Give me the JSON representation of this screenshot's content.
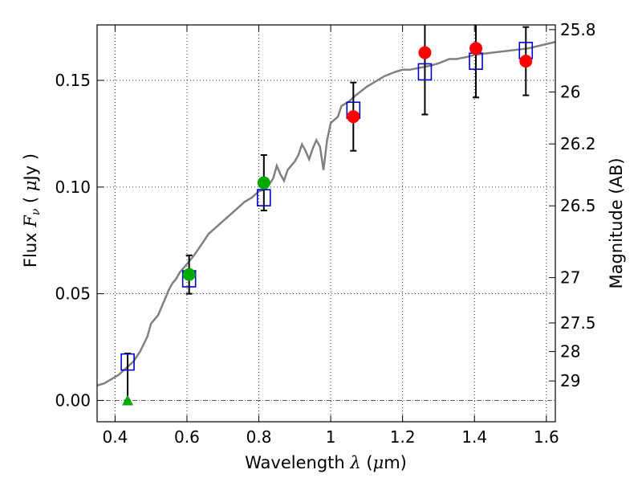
{
  "chart_data": {
    "type": "scatter",
    "title": "",
    "xlabel": "Wavelength  λ (μm)",
    "ylabel": "Flux  F_ν ( μJy )",
    "ylabel_parts": {
      "prefix": "Flux  ",
      "symbol_main": "F",
      "symbol_sub": "ν",
      "open": " ( ",
      "unit_symbol": "μ",
      "unit_rest": "Jy",
      "close": " )"
    },
    "xlabel_parts": {
      "prefix": "Wavelength  ",
      "symbol": "λ",
      "open": " (",
      "unit_symbol": "μ",
      "unit_rest": "m)"
    },
    "y2label": "Magnitude (AB)",
    "xlim": [
      0.35,
      1.625
    ],
    "ylim": [
      -0.01,
      0.176
    ],
    "grid": true,
    "x_ticks": [
      {
        "value": 0.4,
        "label": "0.4"
      },
      {
        "value": 0.6,
        "label": "0.6"
      },
      {
        "value": 0.8,
        "label": "0.8"
      },
      {
        "value": 1.0,
        "label": "1"
      },
      {
        "value": 1.2,
        "label": "1.2"
      },
      {
        "value": 1.4,
        "label": "1.4"
      },
      {
        "value": 1.6,
        "label": "1.6"
      }
    ],
    "y_ticks": [
      {
        "value": 0.0,
        "label": "0.00"
      },
      {
        "value": 0.05,
        "label": "0.05"
      },
      {
        "value": 0.1,
        "label": "0.10"
      },
      {
        "value": 0.15,
        "label": "0.15"
      }
    ],
    "y2_ticks": [
      {
        "value": 25.8,
        "label": "25.8"
      },
      {
        "value": 26.0,
        "label": "26"
      },
      {
        "value": 26.2,
        "label": "26.2"
      },
      {
        "value": 26.5,
        "label": "26.5"
      },
      {
        "value": 27.0,
        "label": "27"
      },
      {
        "value": 27.5,
        "label": "27.5"
      },
      {
        "value": 28.0,
        "label": "28"
      },
      {
        "value": 29.0,
        "label": "29"
      }
    ],
    "series": [
      {
        "kind": "model_spectrum",
        "color": "#808080",
        "x": [
          0.35,
          0.37,
          0.39,
          0.41,
          0.43,
          0.45,
          0.47,
          0.49,
          0.5,
          0.52,
          0.53,
          0.54,
          0.55,
          0.56,
          0.57,
          0.58,
          0.59,
          0.6,
          0.62,
          0.64,
          0.66,
          0.68,
          0.7,
          0.72,
          0.74,
          0.76,
          0.78,
          0.8,
          0.82,
          0.84,
          0.85,
          0.86,
          0.87,
          0.88,
          0.89,
          0.9,
          0.91,
          0.92,
          0.93,
          0.94,
          0.95,
          0.96,
          0.97,
          0.98,
          0.99,
          1.0,
          1.02,
          1.03,
          1.05,
          1.07,
          1.1,
          1.13,
          1.15,
          1.18,
          1.2,
          1.22,
          1.25,
          1.28,
          1.3,
          1.33,
          1.35,
          1.38,
          1.4,
          1.45,
          1.5,
          1.55,
          1.6,
          1.625
        ],
        "y": [
          0.007,
          0.008,
          0.01,
          0.012,
          0.015,
          0.018,
          0.023,
          0.03,
          0.036,
          0.04,
          0.044,
          0.048,
          0.052,
          0.055,
          0.057,
          0.06,
          0.062,
          0.064,
          0.068,
          0.073,
          0.078,
          0.081,
          0.084,
          0.087,
          0.09,
          0.093,
          0.095,
          0.098,
          0.099,
          0.104,
          0.11,
          0.106,
          0.103,
          0.108,
          0.11,
          0.112,
          0.115,
          0.12,
          0.117,
          0.113,
          0.118,
          0.122,
          0.119,
          0.108,
          0.122,
          0.13,
          0.133,
          0.138,
          0.14,
          0.143,
          0.147,
          0.15,
          0.152,
          0.154,
          0.155,
          0.155,
          0.156,
          0.157,
          0.158,
          0.16,
          0.16,
          0.161,
          0.162,
          0.163,
          0.164,
          0.165,
          0.167,
          0.168
        ]
      },
      {
        "kind": "model_photometry",
        "marker": "open-square",
        "color": "#0000cc",
        "x": [
          0.435,
          0.606,
          0.814,
          1.063,
          1.262,
          1.404,
          1.543
        ],
        "y": [
          0.018,
          0.057,
          0.095,
          0.136,
          0.154,
          0.159,
          0.164
        ]
      },
      {
        "kind": "observed_optical",
        "marker": "circle",
        "color": "#00aa00",
        "x": [
          0.606,
          0.814
        ],
        "y": [
          0.059,
          0.102
        ],
        "yerr": [
          0.009,
          0.013
        ]
      },
      {
        "kind": "observed_upper_limit",
        "marker": "triangle",
        "color": "#00aa00",
        "x": [
          0.435
        ],
        "y": [
          0.0
        ],
        "err_low": [
          0.0
        ],
        "err_high": [
          0.022
        ]
      },
      {
        "kind": "observed_nir",
        "marker": "circle",
        "color": "#ff0000",
        "x": [
          1.063,
          1.262,
          1.404,
          1.543
        ],
        "y": [
          0.133,
          0.163,
          0.165,
          0.159
        ],
        "yerr": [
          0.016,
          0.029,
          0.023,
          0.016
        ]
      }
    ]
  }
}
